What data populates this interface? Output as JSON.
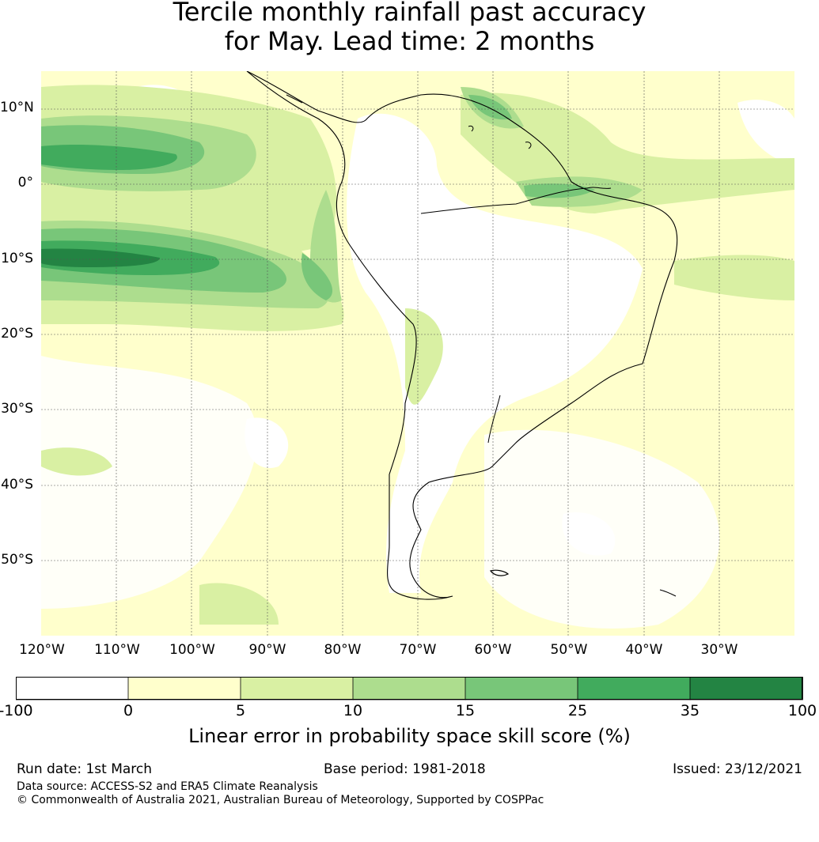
{
  "title": {
    "line1": "Tercile monthly rainfall past accuracy",
    "line2": "for May. Lead time: 2 months"
  },
  "map": {
    "lon_range": [
      -120,
      -20
    ],
    "lat_range": [
      -60,
      15
    ],
    "lat_labels": [
      "10°N",
      "0°",
      "10°S",
      "20°S",
      "30°S",
      "40°S",
      "50°S"
    ],
    "lon_labels": [
      "120°W",
      "110°W",
      "100°W",
      "90°W",
      "80°W",
      "70°W",
      "60°W",
      "50°W",
      "40°W",
      "30°W"
    ]
  },
  "colorbar": {
    "tick_labels": [
      "-100",
      "0",
      "5",
      "10",
      "15",
      "25",
      "35",
      "100"
    ],
    "colors": [
      "#ffffff",
      "#ffffcc",
      "#d9f0a3",
      "#addd8e",
      "#78c679",
      "#41ab5d",
      "#238443"
    ],
    "label": "Linear error in probability space skill score (%)"
  },
  "footer": {
    "run_date": "Run date: 1st March",
    "base_period": "Base period: 1981-2018",
    "issued": "Issued: 23/12/2021",
    "data_source": "Data source: ACCESS-S2 and ERA5 Climate Reanalysis",
    "copyright": "© Commonwealth of Australia 2021, Australian Bureau of Meteorology, Supported by COSPPac"
  }
}
